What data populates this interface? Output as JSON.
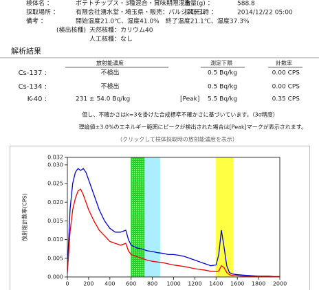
{
  "header": {
    "rows": [
      {
        "label": "検体名 ：",
        "value": "ポテトチップス・3種混合・賞味期限混合",
        "extra_label": "重量(g) ：",
        "extra_value": "588.8"
      },
      {
        "label": "採取場所 ：",
        "value": "有限会社湧水堂・埼玉県・販売：パルシステム",
        "extra_label": "採取日時 ：",
        "extra_value": "2014/12/22 05:00"
      },
      {
        "label": "備考 ：",
        "value": "開始温度21.0℃、湿度41.0%　終了温度21.1℃、湿度37.3%"
      },
      {
        "label": "(検出核種)",
        "value": "天然核種：カリウム40"
      },
      {
        "value": "人工核種：なし"
      }
    ]
  },
  "section_title": "解析結果",
  "table": {
    "headers": [
      "放射能濃度",
      "測定下限",
      "計数率"
    ],
    "rows": [
      [
        "Cs-137 :",
        "不検出",
        "0.5 Bq/kg",
        "0.00 CPS"
      ],
      [
        "Cs-134 :",
        "不検出",
        "0.5 Bq/kg",
        "0.00 CPS"
      ],
      [
        "K-40 :",
        "231 ± 54.0 Bq/kg",
        "[Peak]",
        "5.5 Bq/kg",
        "0.35 CPS"
      ]
    ]
  },
  "notes": [
    "但し、不確かさはk=3を掛けた合成標準不確かさに基づいています。（3σ精度）",
    "理論値±3.0%のエネルギー範囲にピークが検出された場合は[Peak]マークが表示されます。",
    "（クリックして検体採取時の放射能濃度を表示）"
  ],
  "chart_data": {
    "type": "line",
    "y_label": "放射能計数率(CPS)",
    "x": [
      0,
      25,
      50,
      75,
      100,
      125,
      150,
      175,
      200,
      250,
      300,
      350,
      400,
      450,
      500,
      550,
      575,
      600,
      650,
      700,
      750,
      800,
      850,
      900,
      950,
      1000,
      1050,
      1100,
      1150,
      1200,
      1250,
      1300,
      1350,
      1400,
      1425,
      1450,
      1475,
      1500,
      1525,
      1550,
      1600,
      1650,
      1700,
      1750,
      1800,
      1850,
      1900,
      1950,
      2000
    ],
    "series": [
      {
        "color": "#0000cc",
        "values": [
          0.002,
          0.018,
          0.025,
          0.028,
          0.029,
          0.0285,
          0.029,
          0.028,
          0.026,
          0.022,
          0.018,
          0.015,
          0.013,
          0.012,
          0.012,
          0.0125,
          0.01,
          0.0085,
          0.0078,
          0.0075,
          0.007,
          0.0068,
          0.0065,
          0.0063,
          0.006,
          0.006,
          0.0058,
          0.0055,
          0.005,
          0.0045,
          0.004,
          0.0035,
          0.003,
          0.0032,
          0.006,
          0.0125,
          0.008,
          0.003,
          0.0012,
          0.0008,
          0.0006,
          0.0005,
          0.0004,
          0.0003,
          0.0002,
          0.0002,
          0.0002,
          0.0001,
          0.0001
        ]
      },
      {
        "color": "#ee0000",
        "values": [
          0.001,
          0.012,
          0.018,
          0.021,
          0.023,
          0.0235,
          0.022,
          0.02,
          0.018,
          0.015,
          0.0125,
          0.011,
          0.0095,
          0.009,
          0.0085,
          0.009,
          0.007,
          0.006,
          0.0055,
          0.005,
          0.0045,
          0.0042,
          0.004,
          0.0038,
          0.0035,
          0.0032,
          0.003,
          0.0028,
          0.0025,
          0.0022,
          0.002,
          0.0018,
          0.0015,
          0.0014,
          0.0016,
          0.003,
          0.0025,
          0.0012,
          0.0006,
          0.0004,
          0.0003,
          0.0002,
          0.0002,
          0.0001,
          0.0001,
          0.0001,
          0.0001,
          0.0001,
          0.0001
        ]
      }
    ],
    "bands": [
      {
        "from": 600,
        "to": 730,
        "color": "#33dd33",
        "hatched": true
      },
      {
        "from": 730,
        "to": 870,
        "color": "#aaeeff"
      },
      {
        "from": 1400,
        "to": 1560,
        "color": "#ffff44"
      }
    ],
    "xlim": [
      0,
      2000
    ],
    "xticks": [
      0,
      200,
      400,
      600,
      800,
      1000,
      1200,
      1400,
      1600,
      1800,
      2000
    ],
    "ylim": [
      0,
      0.032
    ],
    "yticks": [
      {
        "value": 0,
        "label": "0.000"
      },
      {
        "value": 0.005,
        "label": "0.005"
      },
      {
        "value": 0.01,
        "label": "0.010"
      },
      {
        "value": 0.015,
        "label": "0.015"
      },
      {
        "value": 0.02,
        "label": "0.020"
      },
      {
        "value": 0.025,
        "label": "0.025"
      },
      {
        "value": 0.03,
        "label": "0.030"
      },
      {
        "value": 0.032,
        "label": "0.032"
      }
    ]
  }
}
